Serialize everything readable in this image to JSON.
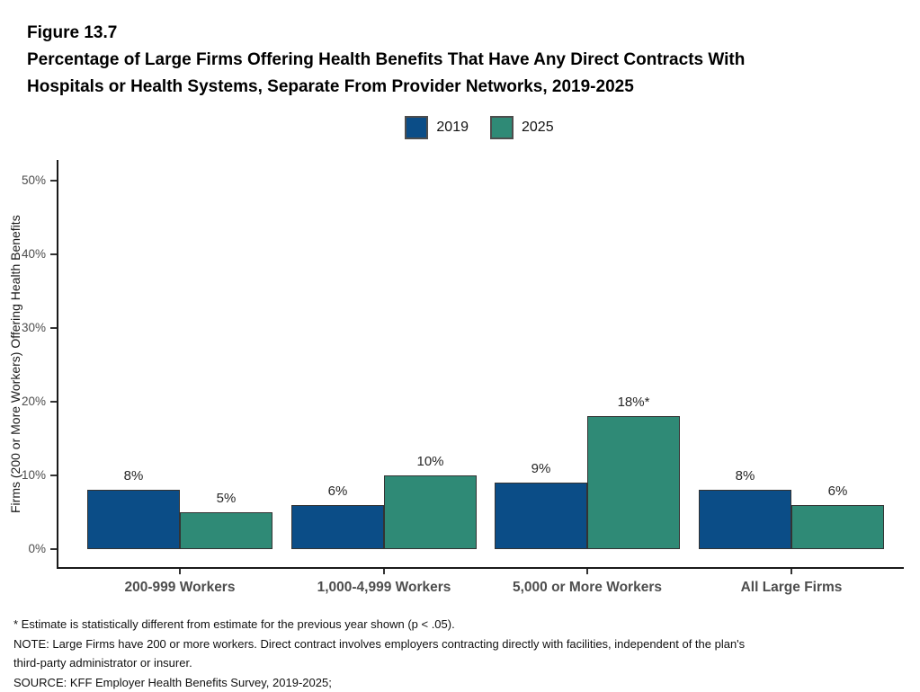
{
  "header": {
    "figure_number": "Figure 13.7",
    "title_line1": "Percentage of Large Firms Offering Health Benefits That Have Any Direct Contracts With",
    "title_line2": "Hospitals or Health Systems, Separate From Provider Networks, 2019-2025"
  },
  "legend": {
    "items": [
      {
        "label": "2019",
        "color": "#0b4d87"
      },
      {
        "label": "2025",
        "color": "#2f8a76"
      }
    ]
  },
  "chart_data": {
    "type": "bar",
    "title": "Percentage of Large Firms Offering Health Benefits That Have Any Direct Contracts With Hospitals or Health Systems, Separate From Provider Networks, 2019-2025",
    "categories": [
      "200-999 Workers",
      "1,000-4,999 Workers",
      "5,000 or More Workers",
      "All Large Firms"
    ],
    "series": [
      {
        "name": "2019",
        "color": "#0b4d87",
        "values": [
          8,
          6,
          9,
          8
        ],
        "labels": [
          "8%",
          "6%",
          "9%",
          "8%"
        ]
      },
      {
        "name": "2025",
        "color": "#2f8a76",
        "values": [
          5,
          10,
          18,
          6
        ],
        "labels": [
          "5%",
          "10%",
          "18%*",
          "6%"
        ]
      }
    ],
    "xlabel": "",
    "ylabel": "Firms (200 or More Workers) Offering Health Benefits",
    "yticks": [
      "0%",
      "10%",
      "20%",
      "30%",
      "40%",
      "50%"
    ],
    "ytick_values": [
      0,
      10,
      20,
      30,
      40,
      50
    ],
    "ylim": [
      0,
      53
    ],
    "grid": false,
    "legend_position": "top-center",
    "bar_border_color": "#333333"
  },
  "footnotes": {
    "line1": "* Estimate is statistically different from estimate for the previous year shown (p < .05).",
    "line2": "NOTE: Large Firms have 200 or more workers. Direct contract involves employers contracting directly with facilities, independent of the plan's",
    "line3": "third-party administrator or insurer.",
    "line4": "SOURCE: KFF Employer Health Benefits Survey, 2019-2025;"
  }
}
